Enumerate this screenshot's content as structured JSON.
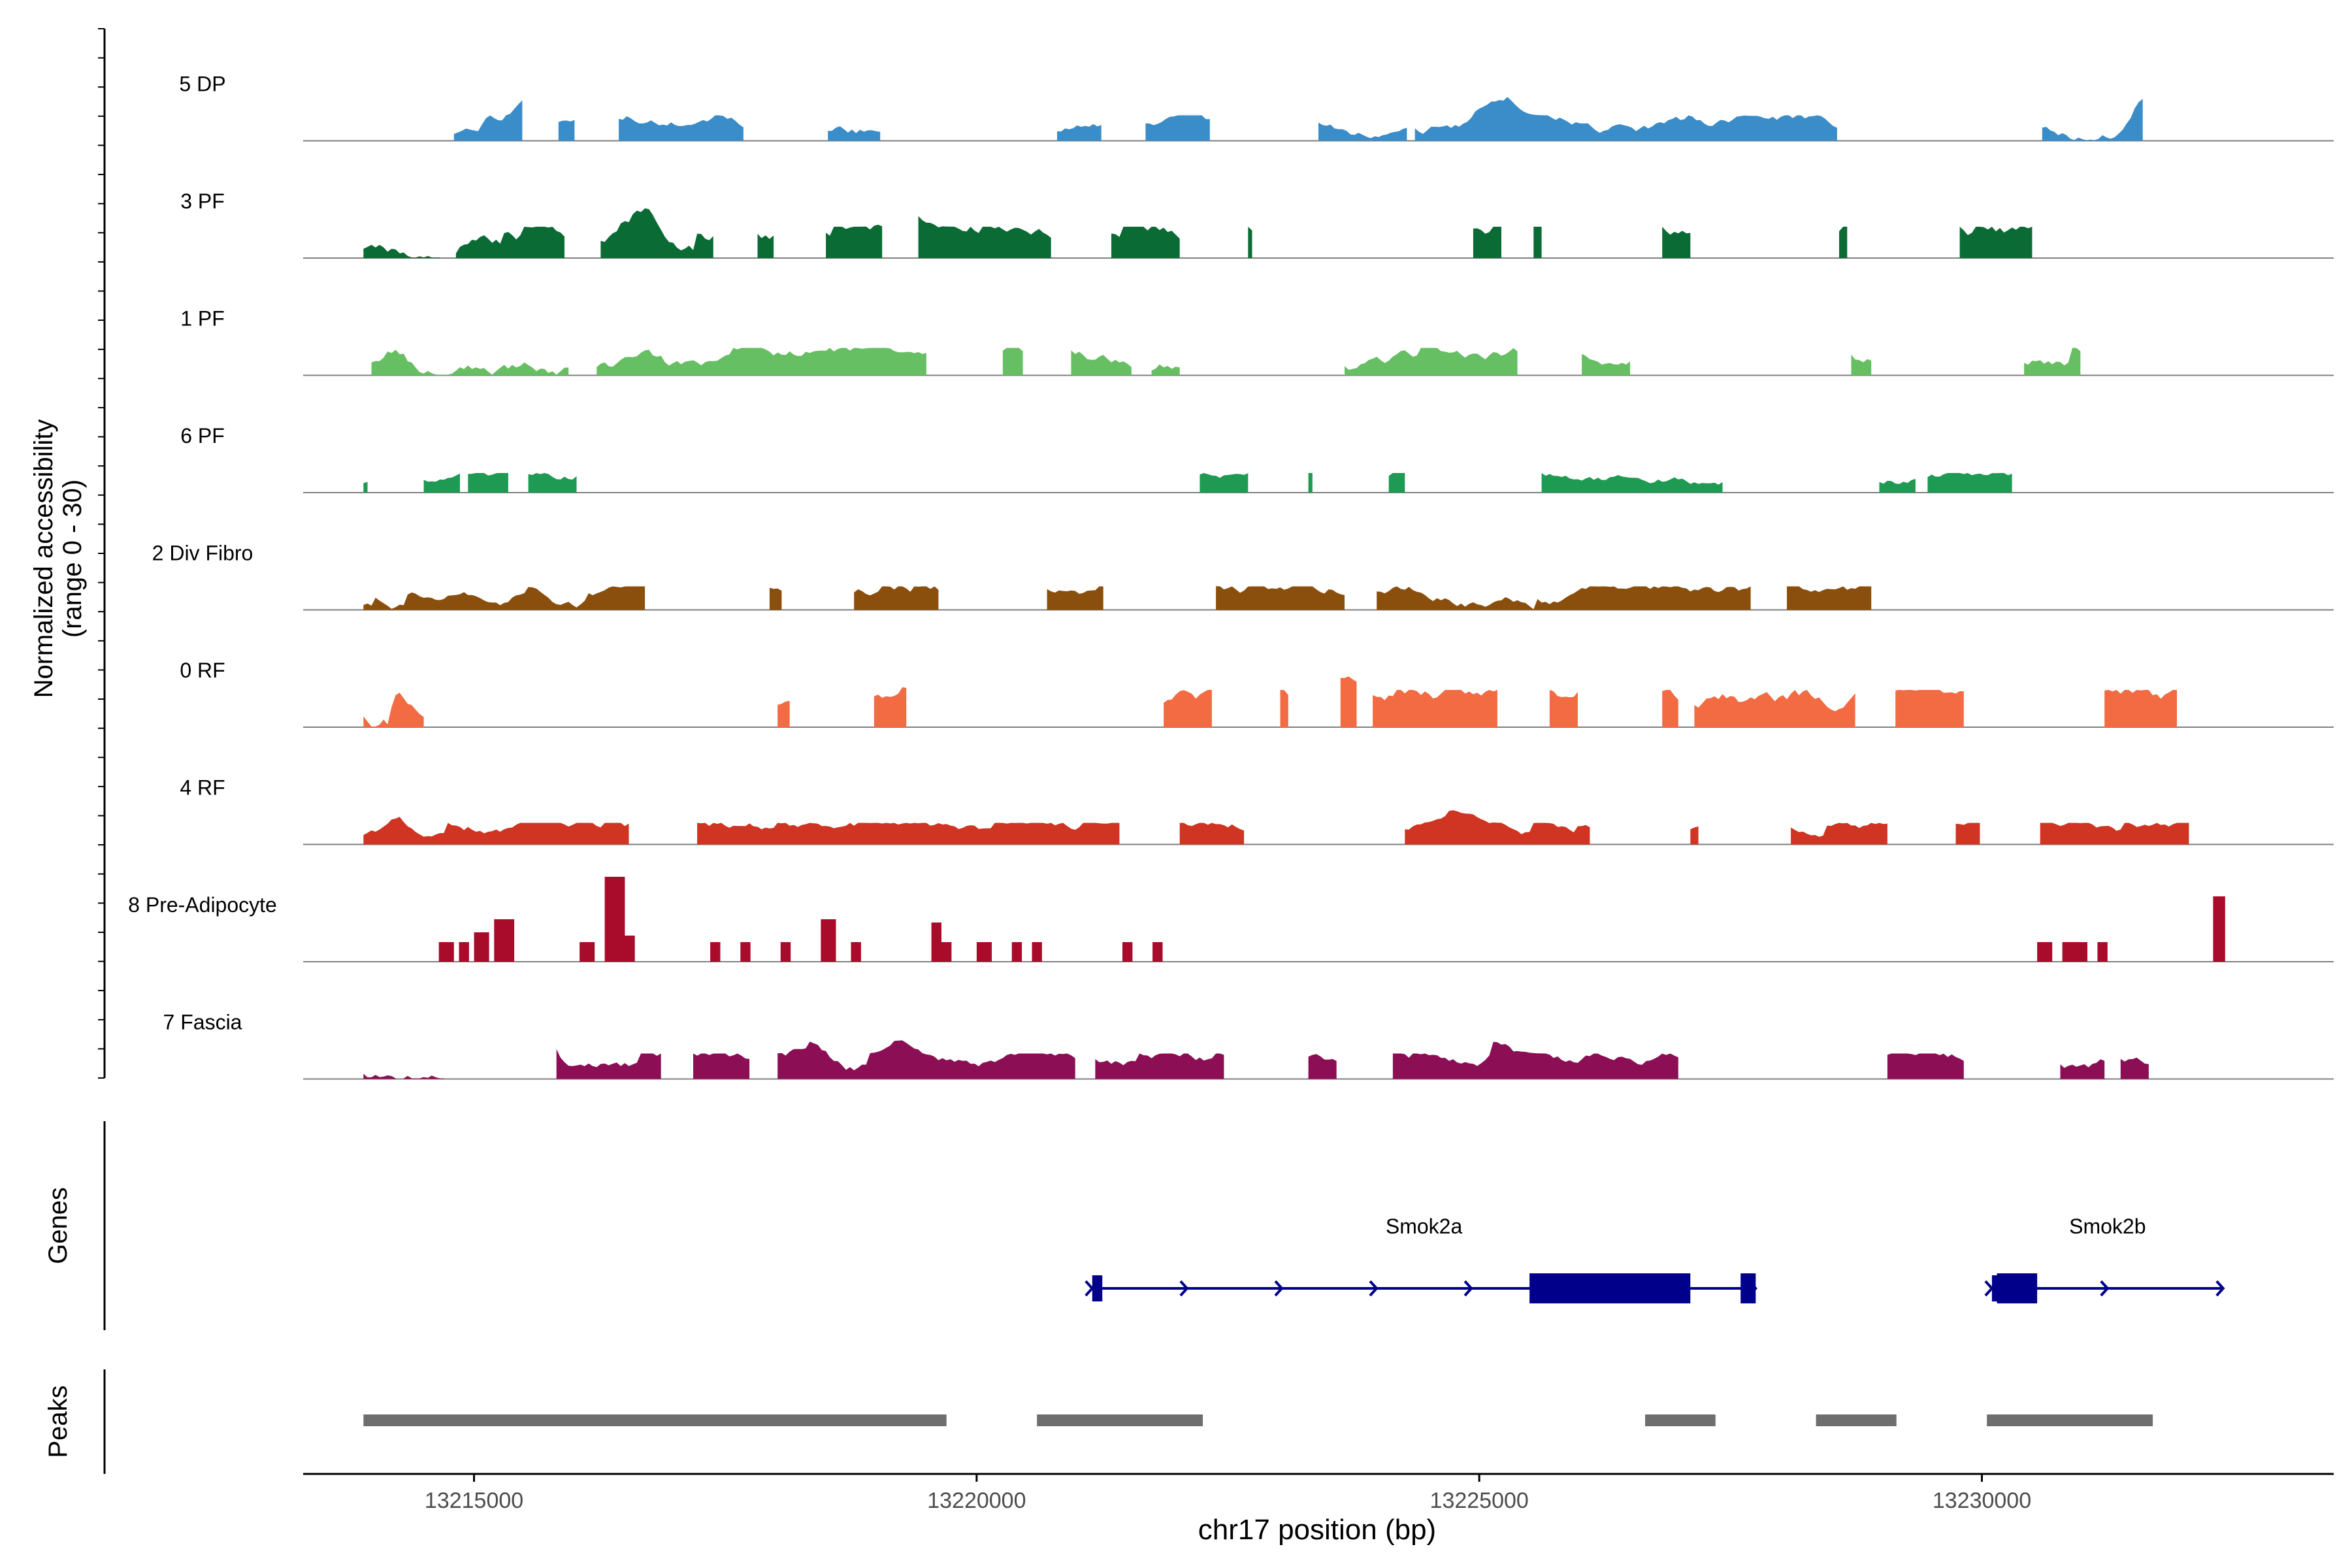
{
  "chart_data": {
    "type": "area",
    "subtype": "genome-coverage-tracks",
    "y_axis_label_line1": "Normalized accessibility",
    "y_axis_label_line2": "(range 0 - 30)",
    "ylim": [
      0,
      30
    ],
    "x_axis_label": "chr17 position (bp)",
    "xlim": [
      13213300,
      13233500
    ],
    "x_ticks": [
      13215000,
      13220000,
      13225000,
      13230000
    ],
    "x_tick_labels": [
      "13215000",
      "13220000",
      "13225000",
      "13230000"
    ],
    "tracks": [
      {
        "name": "5 DP",
        "color": "#3a8dc9",
        "start": 13214800,
        "end": 13232400,
        "level": 2.6,
        "seed": 11,
        "peaks": [
          [
            13215500,
            7
          ],
          [
            13219300,
            6
          ],
          [
            13225200,
            7
          ],
          [
            13231600,
            10
          ]
        ]
      },
      {
        "name": "3 PF",
        "color": "#0b6b35",
        "start": 13213900,
        "end": 13232400,
        "level": 3.2,
        "seed": 23,
        "peaks": [
          [
            13216700,
            6
          ],
          [
            13219300,
            7
          ],
          [
            13231500,
            5
          ]
        ]
      },
      {
        "name": "1 PF",
        "color": "#66bf62",
        "start": 13213900,
        "end": 13232400,
        "level": 2.8,
        "seed": 37,
        "peaks": [
          [
            13214200,
            6
          ],
          [
            13216700,
            5
          ],
          [
            13228500,
            6
          ]
        ]
      },
      {
        "name": "6 PF",
        "color": "#1e9a52",
        "start": 13213900,
        "end": 13232400,
        "level": 2.0,
        "seed": 41,
        "peaks": [
          [
            13219500,
            5
          ],
          [
            13231600,
            8
          ]
        ]
      },
      {
        "name": "2 Div Fibro",
        "color": "#8b4f0d",
        "start": 13213900,
        "end": 13232400,
        "level": 2.4,
        "seed": 53,
        "peaks": [
          [
            13215600,
            6
          ],
          [
            13222000,
            6
          ],
          [
            13231600,
            6
          ]
        ]
      },
      {
        "name": "0 RF",
        "color": "#f26b43",
        "start": 13213900,
        "end": 13232400,
        "level": 3.8,
        "seed": 67,
        "peaks": [
          [
            13219300,
            5
          ],
          [
            13223700,
            5
          ],
          [
            13226200,
            6
          ]
        ]
      },
      {
        "name": "4 RF",
        "color": "#d03422",
        "start": 13213900,
        "end": 13232400,
        "level": 2.2,
        "seed": 71,
        "peaks": [
          [
            13214200,
            4
          ],
          [
            13224800,
            5
          ]
        ]
      },
      {
        "name": "8 Pre-Adipocyte",
        "color": "#a80c2a",
        "start": 13214600,
        "end": 13232400,
        "level": 0,
        "seed": 83,
        "blocks": [
          [
            13214650,
            13214800,
            6
          ],
          [
            13214850,
            13214950,
            6
          ],
          [
            13215000,
            13215150,
            9
          ],
          [
            13215200,
            13215400,
            13
          ],
          [
            13216050,
            13216200,
            6
          ],
          [
            13216300,
            13216500,
            26
          ],
          [
            13216500,
            13216600,
            8
          ],
          [
            13217350,
            13217450,
            6
          ],
          [
            13217650,
            13217750,
            6
          ],
          [
            13218050,
            13218150,
            6
          ],
          [
            13218450,
            13218600,
            13
          ],
          [
            13218750,
            13218850,
            6
          ],
          [
            13219550,
            13219650,
            12
          ],
          [
            13219650,
            13219750,
            6
          ],
          [
            13220000,
            13220150,
            6
          ],
          [
            13220350,
            13220450,
            6
          ],
          [
            13220550,
            13220650,
            6
          ],
          [
            13221450,
            13221550,
            6
          ],
          [
            13221750,
            13221850,
            6
          ],
          [
            13230550,
            13230700,
            6
          ],
          [
            13230800,
            13230950,
            6
          ],
          [
            13230950,
            13231050,
            6
          ],
          [
            13231150,
            13231250,
            6
          ],
          [
            13232300,
            13232420,
            20
          ]
        ]
      },
      {
        "name": "7 Fascia",
        "color": "#8c0f56",
        "start": 13213900,
        "end": 13232400,
        "level": 2.6,
        "seed": 97,
        "peaks": [
          [
            13215700,
            14
          ],
          [
            13218400,
            6
          ],
          [
            13219300,
            6
          ],
          [
            13225200,
            4
          ]
        ]
      }
    ],
    "genes_label": "Genes",
    "genes": [
      {
        "name": "Smok2a",
        "color": "#00008b",
        "start": 13221150,
        "end": 13227750,
        "strand": "+",
        "exons": [
          [
            13221150,
            13221250,
            "utr"
          ],
          [
            13225500,
            13227100,
            "cds"
          ],
          [
            13227600,
            13227750,
            "cds"
          ]
        ]
      },
      {
        "name": "Smok2b",
        "color": "#00008b",
        "start": 13230100,
        "end": 13232400,
        "strand": "+",
        "exons": [
          [
            13230100,
            13230150,
            "utr"
          ],
          [
            13230150,
            13230550,
            "cds"
          ]
        ]
      }
    ],
    "peaks_label": "Peaks",
    "peaks_color": "#6e6e6e",
    "peak_regions": [
      [
        13213900,
        13219700
      ],
      [
        13220600,
        13222250
      ],
      [
        13226650,
        13227350
      ],
      [
        13228350,
        13229150
      ],
      [
        13230050,
        13231700
      ]
    ]
  }
}
